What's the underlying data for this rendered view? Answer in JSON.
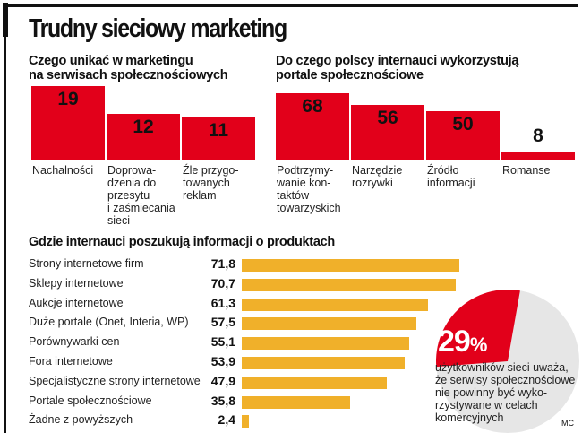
{
  "title": "Trudny sieciowy marketing",
  "credit": "MC",
  "colors": {
    "red": "#e2001a",
    "orange": "#f0b02a",
    "gray": "#e6e6e6"
  },
  "chart_data": [
    {
      "type": "bar",
      "title": "Czego unikać w marketingu na serwisach społecznościowych",
      "title_lines": [
        "Czego unikać w marketingu",
        "na serwisach społecznościowych"
      ],
      "categories": [
        "Nachalności",
        "Doprowa-\ndzenia do\nprzesytu\ni zaśmiecania\nsieci",
        "Źle przygo-\ntowanych\nreklam"
      ],
      "values": [
        19,
        12,
        11
      ],
      "labels": [
        "19",
        "12",
        "11"
      ]
    },
    {
      "type": "bar",
      "title": "Do czego polscy internauci wykorzystują portale społecznościowe",
      "title_lines": [
        "Do czego polscy internauci wykorzystują",
        "portale społecznościowe"
      ],
      "categories": [
        "Podtrzymy-\nwanie kon-\ntaktów\ntowarzyskich",
        "Narzędzie\nrozrywki",
        "Źródło\ninformacji",
        "Romanse"
      ],
      "values": [
        68,
        56,
        50,
        8
      ],
      "labels": [
        "68",
        "56",
        "50",
        "8"
      ]
    },
    {
      "type": "bar",
      "orientation": "horizontal",
      "title": "Gdzie internauci poszukują informacji o produktach",
      "categories": [
        "Strony internetowe firm",
        "Sklepy internetowe",
        "Aukcje internetowe",
        "Duże portale (Onet, Interia, WP)",
        "Porównywarki cen",
        "Fora internetowe",
        "Specjalistyczne strony internetowe",
        "Portale społecznościowe",
        "Żadne z powyższych"
      ],
      "values": [
        71.8,
        70.7,
        61.3,
        57.5,
        55.1,
        53.9,
        47.9,
        35.8,
        2.4
      ],
      "labels": [
        "71,8",
        "70,7",
        "61,3",
        "57,5",
        "55,1",
        "53,9",
        "47,9",
        "35,8",
        "2,4"
      ]
    },
    {
      "type": "pie",
      "values": [
        29,
        71
      ],
      "label": "29",
      "unit": "%",
      "note_lines": [
        "użytkowników sieci uważa,",
        "że serwisy społecznościowe",
        "nie powinny być wyko-",
        "rzystywane w celach",
        "komercyjnych"
      ]
    }
  ]
}
